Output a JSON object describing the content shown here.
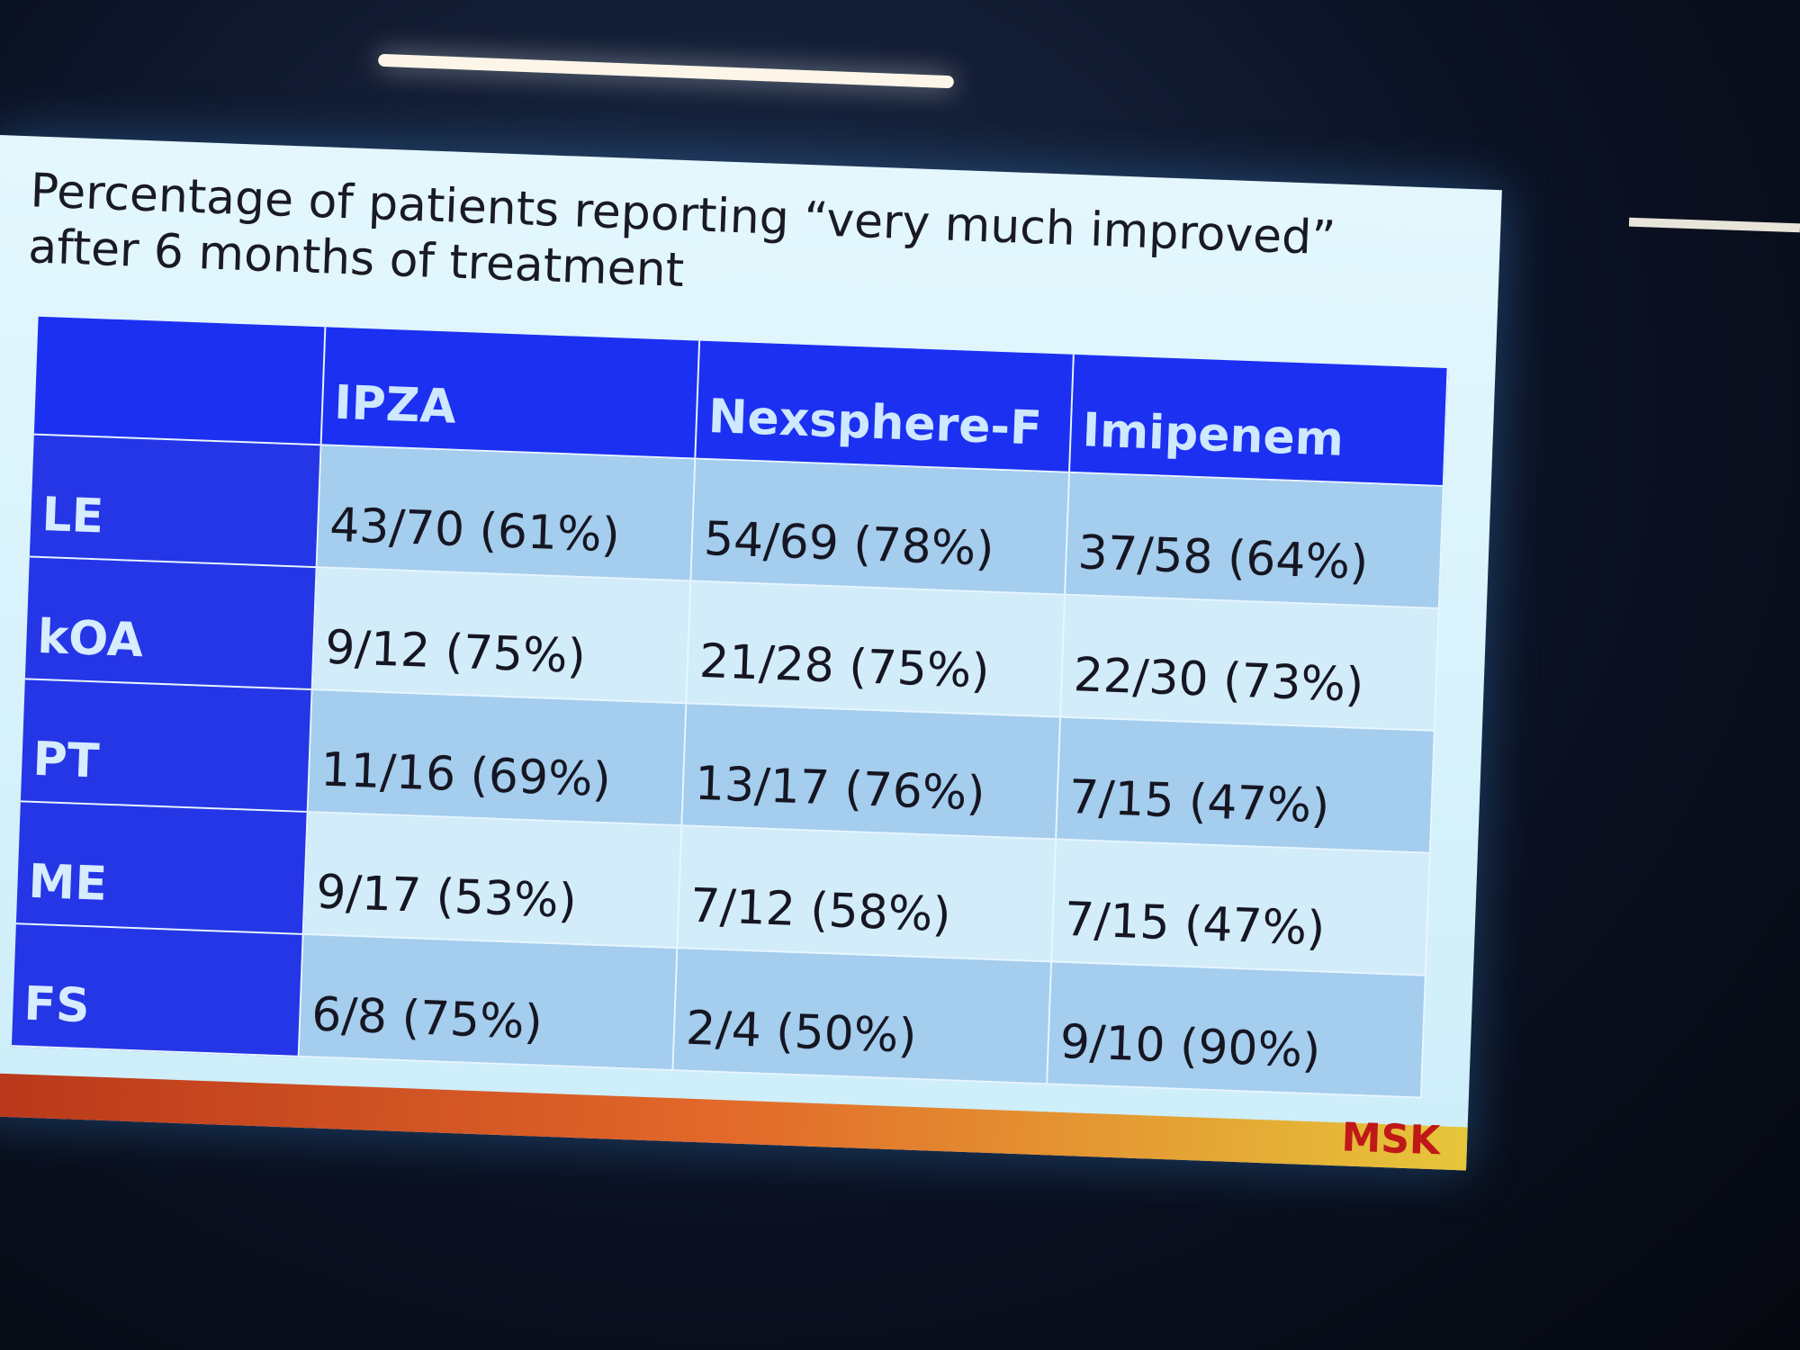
{
  "slide": {
    "title": [
      "Percentage of patients reporting “very much improved”",
      "after 6 months of treatment"
    ],
    "table": {
      "columns": [
        "IPZA",
        "Nexsphere-F",
        "Imipenem"
      ],
      "rows": [
        [
          "LE",
          "43/70 (61%)",
          "54/69 (78%)",
          "37/58 (64%)"
        ],
        [
          "kOA",
          "9/12 (75%)",
          "21/28 (75%)",
          "22/30 (73%)"
        ],
        [
          "PT",
          "11/16 (69%)",
          "13/17 (76%)",
          "7/15 (47%)"
        ],
        [
          "ME",
          "9/17 (53%)",
          "7/12 (58%)",
          "7/15 (47%)"
        ],
        [
          "FS",
          "6/8 (75%)",
          "2/4 (50%)",
          "9/10 (90%)"
        ]
      ]
    },
    "logo": "MSK"
  }
}
